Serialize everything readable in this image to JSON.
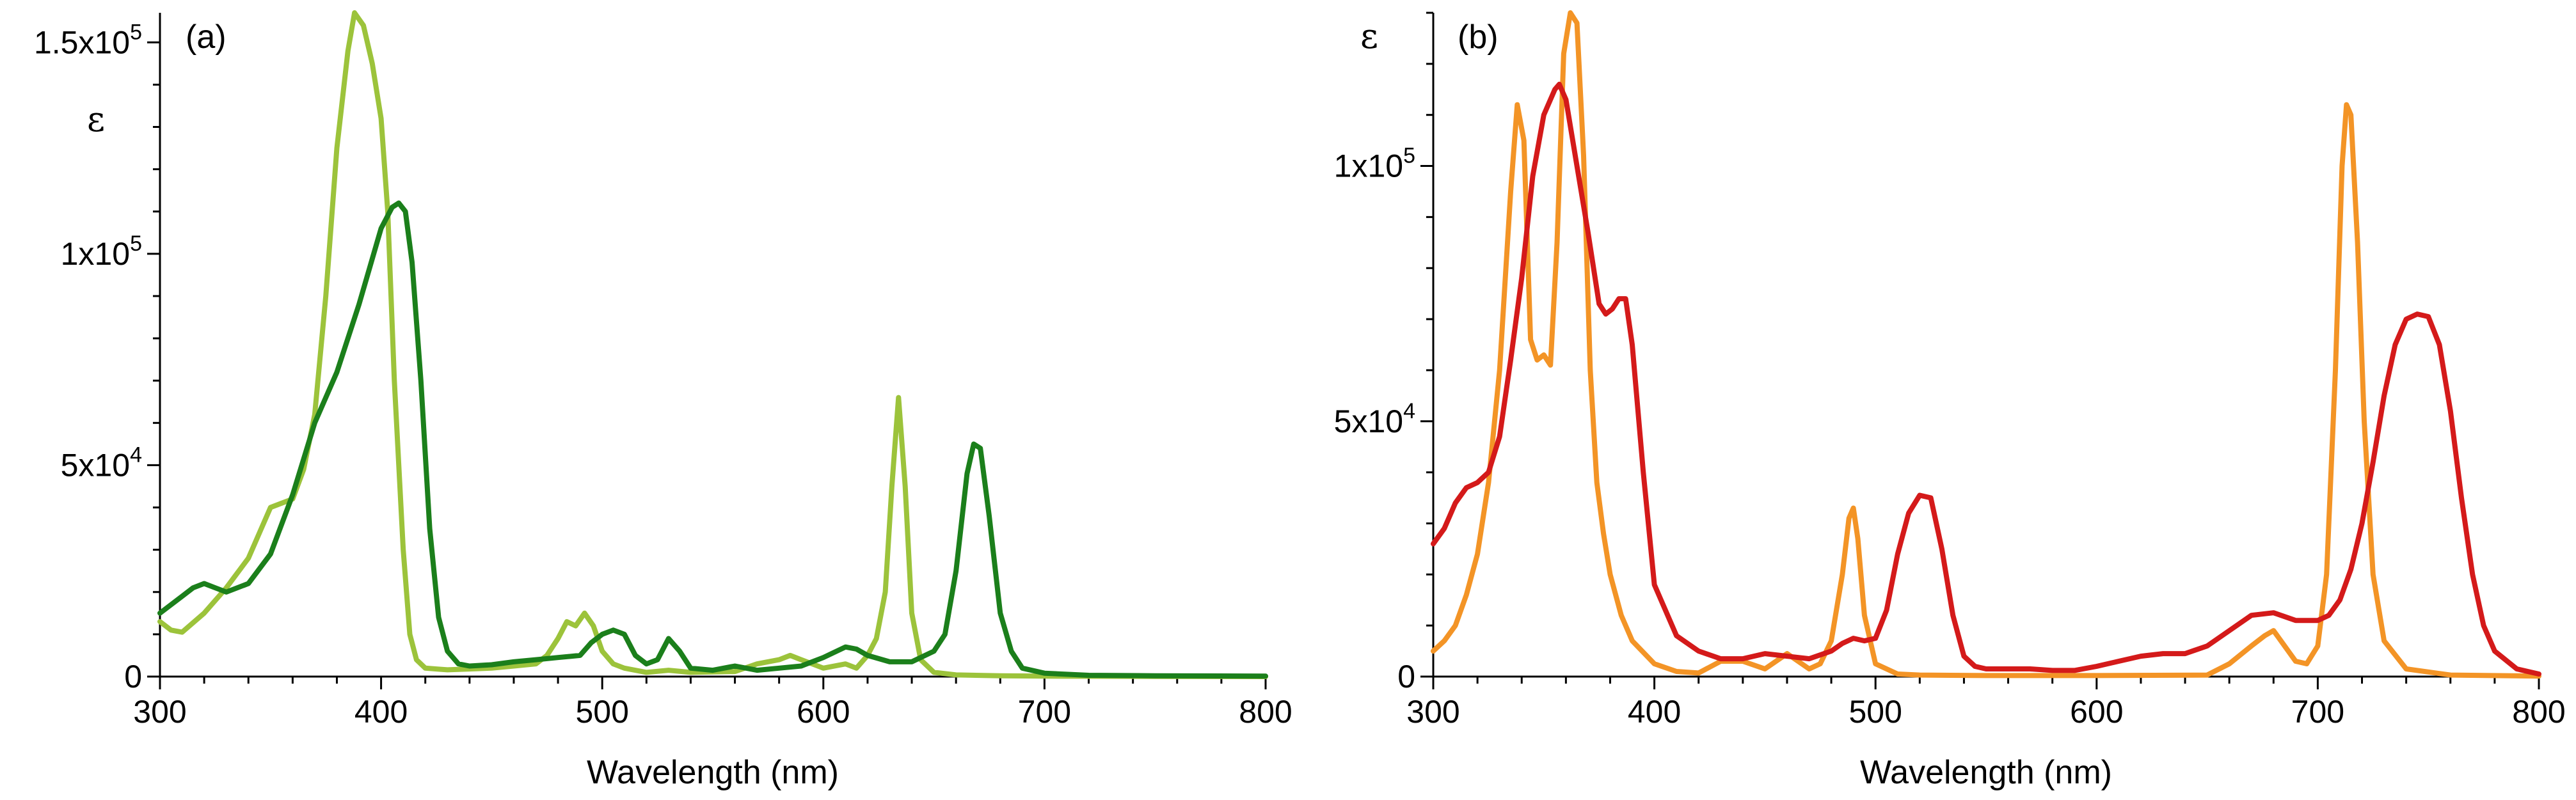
{
  "chart_data": [
    {
      "type": "line",
      "panel_label": "(a)",
      "ylabel": "ε",
      "xlabel": "Wavelength (nm)",
      "xlim": [
        300,
        800
      ],
      "ylim": [
        0,
        157000
      ],
      "x_ticks": [
        300,
        400,
        500,
        600,
        700,
        800
      ],
      "x_tick_labels": [
        "300",
        "400",
        "500",
        "600",
        "700",
        "800"
      ],
      "y_ticks": [
        {
          "value": 0,
          "base": "0",
          "exp": ""
        },
        {
          "value": 50000,
          "base": "5x10",
          "exp": "4"
        },
        {
          "value": 100000,
          "base": "1x10",
          "exp": "5"
        },
        {
          "value": 150000,
          "base": "1.5x10",
          "exp": "5"
        }
      ],
      "grid": false,
      "series": [
        {
          "name": "light green",
          "color": "#9cc33b",
          "x": [
            300,
            305,
            310,
            320,
            330,
            340,
            345,
            350,
            355,
            360,
            365,
            370,
            375,
            380,
            385,
            388,
            392,
            396,
            400,
            403,
            406,
            410,
            413,
            416,
            420,
            425,
            430,
            440,
            450,
            460,
            470,
            475,
            480,
            484,
            488,
            492,
            496,
            500,
            505,
            510,
            520,
            530,
            540,
            560,
            570,
            580,
            585,
            590,
            600,
            610,
            615,
            620,
            624,
            628,
            631,
            634,
            637,
            640,
            644,
            650,
            660,
            680,
            700,
            750,
            800
          ],
          "y": [
            13000,
            11000,
            10500,
            15000,
            21000,
            28000,
            34000,
            40000,
            41000,
            42000,
            49000,
            62000,
            90000,
            125000,
            148000,
            157000,
            154000,
            145000,
            132000,
            110000,
            70000,
            30000,
            10000,
            4000,
            2000,
            1800,
            1600,
            1800,
            2000,
            2500,
            3000,
            5000,
            9000,
            13000,
            12000,
            15000,
            12000,
            6000,
            3000,
            2000,
            1000,
            1500,
            1000,
            1200,
            3000,
            4000,
            5000,
            4000,
            2000,
            3000,
            2000,
            5000,
            9000,
            20000,
            45000,
            66000,
            45000,
            15000,
            4000,
            1000,
            400,
            200,
            100,
            50,
            0
          ]
        },
        {
          "name": "dark green",
          "color": "#1b7f1b",
          "x": [
            300,
            310,
            315,
            320,
            325,
            330,
            340,
            350,
            360,
            370,
            380,
            390,
            395,
            400,
            405,
            408,
            411,
            414,
            418,
            422,
            426,
            430,
            435,
            440,
            450,
            460,
            470,
            480,
            490,
            495,
            500,
            505,
            510,
            515,
            520,
            525,
            530,
            535,
            540,
            550,
            560,
            570,
            580,
            590,
            600,
            610,
            615,
            620,
            630,
            640,
            650,
            655,
            660,
            665,
            668,
            671,
            675,
            680,
            685,
            690,
            700,
            720,
            750,
            800
          ],
          "y": [
            15000,
            19000,
            21000,
            22000,
            21000,
            20000,
            22000,
            29000,
            43000,
            60000,
            72000,
            88000,
            97000,
            106000,
            111000,
            112000,
            110000,
            98000,
            70000,
            35000,
            14000,
            6000,
            3000,
            2500,
            2800,
            3500,
            4000,
            4500,
            5000,
            8000,
            10000,
            11000,
            10000,
            5000,
            3000,
            4000,
            9000,
            6000,
            2000,
            1500,
            2500,
            1500,
            2000,
            2500,
            4500,
            7000,
            6500,
            5000,
            3500,
            3500,
            6000,
            10000,
            25000,
            48000,
            55000,
            54000,
            38000,
            15000,
            6000,
            2000,
            800,
            300,
            200,
            100
          ]
        }
      ]
    },
    {
      "type": "line",
      "panel_label": "(b)",
      "ylabel": "ε",
      "xlabel": "Wavelength (nm)",
      "xlim": [
        300,
        800
      ],
      "ylim": [
        0,
        130000
      ],
      "x_ticks": [
        300,
        400,
        500,
        600,
        700,
        800
      ],
      "x_tick_labels": [
        "300",
        "400",
        "500",
        "600",
        "700",
        "800"
      ],
      "y_ticks": [
        {
          "value": 0,
          "base": "0",
          "exp": ""
        },
        {
          "value": 50000,
          "base": "5x10",
          "exp": "4"
        },
        {
          "value": 100000,
          "base": "1x10",
          "exp": "5"
        }
      ],
      "grid": false,
      "series": [
        {
          "name": "orange",
          "color": "#f39426",
          "x": [
            300,
            305,
            310,
            315,
            320,
            325,
            330,
            335,
            338,
            341,
            344,
            347,
            350,
            353,
            356,
            359,
            362,
            365,
            368,
            371,
            374,
            377,
            380,
            385,
            390,
            400,
            410,
            420,
            430,
            440,
            450,
            460,
            470,
            475,
            480,
            485,
            488,
            490,
            492,
            495,
            500,
            510,
            520,
            550,
            600,
            650,
            660,
            670,
            676,
            680,
            685,
            690,
            695,
            700,
            704,
            708,
            711,
            713,
            715,
            718,
            721,
            725,
            730,
            740,
            760,
            800
          ],
          "y": [
            5000,
            7000,
            10000,
            16000,
            24000,
            38000,
            60000,
            95000,
            112000,
            105000,
            66000,
            62000,
            63000,
            61000,
            85000,
            122000,
            130000,
            128000,
            102000,
            60000,
            38000,
            28000,
            20000,
            12000,
            7000,
            2500,
            1000,
            700,
            3000,
            3000,
            1500,
            4500,
            1500,
            2500,
            7000,
            20000,
            31000,
            33000,
            27000,
            12000,
            2500,
            500,
            300,
            200,
            200,
            300,
            2500,
            6000,
            8000,
            9000,
            6000,
            3000,
            2500,
            6000,
            20000,
            60000,
            100000,
            112000,
            110000,
            85000,
            50000,
            20000,
            7000,
            1500,
            300,
            100
          ]
        },
        {
          "name": "red",
          "color": "#d41a1a",
          "x": [
            300,
            305,
            310,
            315,
            320,
            325,
            330,
            335,
            340,
            345,
            350,
            355,
            357,
            360,
            365,
            370,
            375,
            378,
            381,
            384,
            387,
            390,
            395,
            400,
            410,
            420,
            430,
            440,
            450,
            460,
            470,
            480,
            485,
            490,
            495,
            500,
            505,
            510,
            515,
            520,
            525,
            530,
            535,
            540,
            545,
            550,
            560,
            570,
            580,
            590,
            600,
            610,
            620,
            630,
            640,
            650,
            660,
            670,
            680,
            690,
            700,
            705,
            710,
            715,
            720,
            725,
            730,
            735,
            740,
            745,
            750,
            755,
            760,
            765,
            770,
            775,
            780,
            790,
            800
          ],
          "y": [
            26000,
            29000,
            34000,
            37000,
            38000,
            40000,
            47000,
            62000,
            78000,
            98000,
            110000,
            115000,
            116000,
            113000,
            100000,
            87000,
            73000,
            71000,
            72000,
            74000,
            74000,
            65000,
            40000,
            18000,
            8000,
            5000,
            3500,
            3500,
            4500,
            4000,
            3500,
            5000,
            6500,
            7500,
            7000,
            7500,
            13000,
            24000,
            32000,
            35500,
            35000,
            25000,
            12000,
            4000,
            2000,
            1500,
            1500,
            1500,
            1200,
            1200,
            2000,
            3000,
            4000,
            4500,
            4500,
            6000,
            9000,
            12000,
            12500,
            11000,
            11000,
            12000,
            15000,
            21000,
            30000,
            42000,
            55000,
            65000,
            70000,
            71000,
            70500,
            65000,
            52000,
            35000,
            20000,
            10000,
            5000,
            1500,
            500
          ]
        }
      ]
    }
  ]
}
